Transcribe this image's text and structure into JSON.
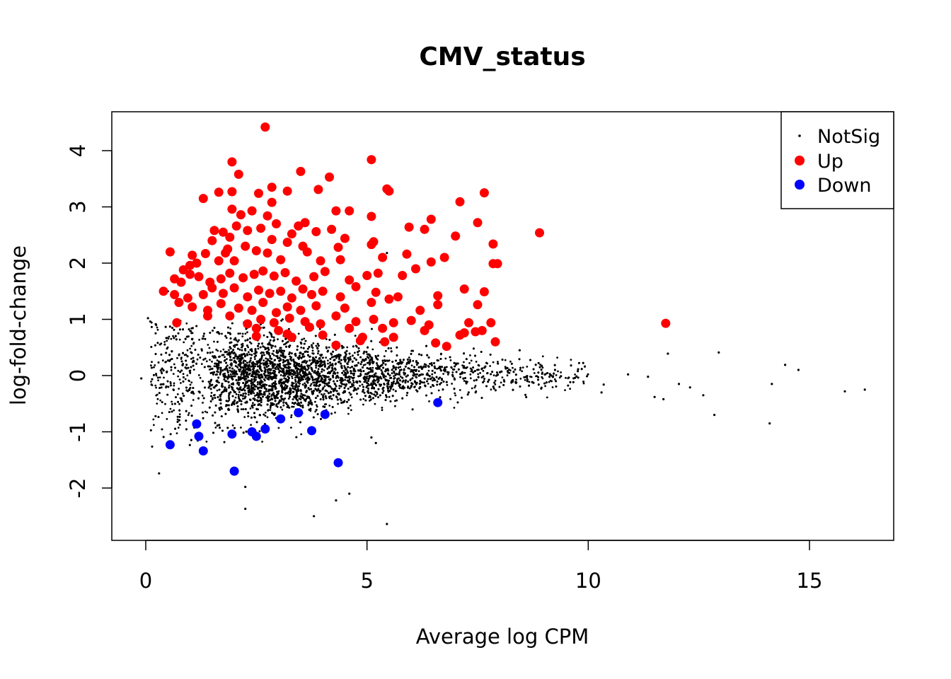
{
  "chart_data": {
    "type": "scatter",
    "title": "CMV_status",
    "xlabel": "Average log CPM",
    "ylabel": "log-fold-change",
    "xlim": [
      -0.8,
      17.0
    ],
    "ylim": [
      -2.9,
      4.7
    ],
    "xticks": [
      0,
      5,
      10,
      15
    ],
    "yticks": [
      -2,
      -1,
      0,
      1,
      2,
      3,
      4
    ],
    "grid": false,
    "legend": {
      "position": "top-right",
      "entries": [
        {
          "label": "NotSig",
          "color": "#000000",
          "marker": "small-dot"
        },
        {
          "label": "Up",
          "color": "#ff0000",
          "marker": "dot"
        },
        {
          "label": "Down",
          "color": "#0000ff",
          "marker": "dot"
        }
      ]
    },
    "series": [
      {
        "name": "Up",
        "color": "#ff0000",
        "points": [
          [
            2.7,
            4.42
          ],
          [
            5.1,
            3.84
          ],
          [
            1.95,
            3.8
          ],
          [
            3.5,
            3.63
          ],
          [
            2.1,
            3.58
          ],
          [
            4.15,
            3.53
          ],
          [
            2.85,
            3.35
          ],
          [
            5.45,
            3.32
          ],
          [
            5.5,
            3.28
          ],
          [
            1.95,
            3.27
          ],
          [
            1.65,
            3.26
          ],
          [
            2.55,
            3.24
          ],
          [
            3.2,
            3.28
          ],
          [
            3.9,
            3.31
          ],
          [
            7.65,
            3.25
          ],
          [
            1.3,
            3.15
          ],
          [
            2.85,
            3.08
          ],
          [
            7.1,
            3.09
          ],
          [
            2.4,
            2.93
          ],
          [
            4.3,
            2.93
          ],
          [
            4.6,
            2.93
          ],
          [
            1.95,
            2.96
          ],
          [
            2.15,
            2.86
          ],
          [
            5.1,
            2.83
          ],
          [
            2.75,
            2.84
          ],
          [
            6.45,
            2.78
          ],
          [
            2.95,
            2.7
          ],
          [
            3.6,
            2.72
          ],
          [
            3.45,
            2.66
          ],
          [
            7.5,
            2.72
          ],
          [
            2.3,
            2.58
          ],
          [
            2.6,
            2.62
          ],
          [
            3.85,
            2.56
          ],
          [
            5.95,
            2.64
          ],
          [
            6.3,
            2.6
          ],
          [
            2.05,
            2.66
          ],
          [
            1.55,
            2.58
          ],
          [
            1.75,
            2.55
          ],
          [
            3.3,
            2.52
          ],
          [
            4.2,
            2.6
          ],
          [
            7.0,
            2.48
          ],
          [
            8.9,
            2.54
          ],
          [
            1.5,
            2.4
          ],
          [
            1.9,
            2.46
          ],
          [
            2.85,
            2.42
          ],
          [
            3.2,
            2.37
          ],
          [
            4.5,
            2.44
          ],
          [
            5.15,
            2.38
          ],
          [
            7.85,
            2.34
          ],
          [
            1.85,
            2.25
          ],
          [
            2.25,
            2.3
          ],
          [
            3.55,
            2.3
          ],
          [
            4.35,
            2.28
          ],
          [
            5.1,
            2.33
          ],
          [
            0.55,
            2.2
          ],
          [
            0.85,
            1.88
          ],
          [
            1.0,
            1.96
          ],
          [
            1.05,
            2.14
          ],
          [
            1.15,
            2.0
          ],
          [
            1.35,
            2.17
          ],
          [
            1.65,
            2.04
          ],
          [
            1.8,
            2.18
          ],
          [
            2.0,
            2.04
          ],
          [
            2.5,
            2.22
          ],
          [
            2.75,
            2.18
          ],
          [
            3.05,
            2.06
          ],
          [
            3.65,
            2.2
          ],
          [
            3.95,
            2.04
          ],
          [
            4.4,
            2.06
          ],
          [
            5.35,
            2.1
          ],
          [
            5.9,
            2.16
          ],
          [
            6.45,
            2.02
          ],
          [
            6.75,
            2.1
          ],
          [
            7.85,
            1.99
          ],
          [
            7.95,
            1.99
          ],
          [
            0.65,
            1.72
          ],
          [
            0.8,
            1.66
          ],
          [
            1.0,
            1.8
          ],
          [
            1.2,
            1.76
          ],
          [
            1.45,
            1.66
          ],
          [
            1.7,
            1.72
          ],
          [
            1.9,
            1.82
          ],
          [
            2.2,
            1.74
          ],
          [
            2.45,
            1.8
          ],
          [
            2.65,
            1.86
          ],
          [
            2.9,
            1.77
          ],
          [
            3.15,
            1.83
          ],
          [
            3.4,
            1.68
          ],
          [
            3.8,
            1.76
          ],
          [
            4.05,
            1.85
          ],
          [
            4.6,
            1.7
          ],
          [
            5.0,
            1.78
          ],
          [
            5.25,
            1.82
          ],
          [
            5.8,
            1.78
          ],
          [
            6.1,
            1.9
          ],
          [
            0.4,
            1.5
          ],
          [
            0.65,
            1.44
          ],
          [
            0.95,
            1.38
          ],
          [
            1.3,
            1.44
          ],
          [
            1.5,
            1.56
          ],
          [
            1.75,
            1.46
          ],
          [
            2.0,
            1.56
          ],
          [
            2.3,
            1.4
          ],
          [
            2.55,
            1.52
          ],
          [
            2.8,
            1.46
          ],
          [
            3.05,
            1.5
          ],
          [
            3.3,
            1.38
          ],
          [
            3.55,
            1.54
          ],
          [
            3.75,
            1.44
          ],
          [
            4.0,
            1.5
          ],
          [
            4.4,
            1.4
          ],
          [
            4.75,
            1.58
          ],
          [
            5.2,
            1.48
          ],
          [
            5.7,
            1.4
          ],
          [
            6.6,
            1.42
          ],
          [
            7.2,
            1.54
          ],
          [
            7.65,
            1.49
          ],
          [
            0.75,
            1.3
          ],
          [
            1.05,
            1.22
          ],
          [
            1.4,
            1.16
          ],
          [
            1.7,
            1.28
          ],
          [
            2.1,
            1.2
          ],
          [
            2.4,
            1.16
          ],
          [
            2.65,
            1.3
          ],
          [
            2.95,
            1.12
          ],
          [
            3.2,
            1.22
          ],
          [
            3.5,
            1.16
          ],
          [
            3.85,
            1.24
          ],
          [
            4.5,
            1.2
          ],
          [
            5.1,
            1.3
          ],
          [
            5.5,
            1.36
          ],
          [
            6.2,
            1.16
          ],
          [
            6.6,
            1.26
          ],
          [
            7.5,
            1.26
          ],
          [
            0.7,
            0.94
          ],
          [
            1.4,
            1.06
          ],
          [
            1.9,
            1.06
          ],
          [
            2.3,
            0.92
          ],
          [
            2.6,
            1.0
          ],
          [
            2.9,
            0.94
          ],
          [
            3.25,
            1.02
          ],
          [
            3.6,
            0.96
          ],
          [
            3.95,
            0.92
          ],
          [
            4.3,
            1.06
          ],
          [
            4.75,
            0.96
          ],
          [
            5.15,
            1.0
          ],
          [
            5.6,
            0.94
          ],
          [
            6.0,
            0.98
          ],
          [
            6.4,
            0.9
          ],
          [
            7.3,
            0.94
          ],
          [
            7.8,
            0.94
          ],
          [
            2.5,
            0.84
          ],
          [
            3.0,
            0.8
          ],
          [
            3.7,
            0.86
          ],
          [
            4.6,
            0.84
          ],
          [
            5.35,
            0.84
          ],
          [
            6.3,
            0.8
          ],
          [
            7.45,
            0.78
          ],
          [
            3.2,
            0.74
          ],
          [
            4.0,
            0.72
          ],
          [
            4.9,
            0.68
          ],
          [
            7.1,
            0.72
          ],
          [
            7.2,
            0.76
          ],
          [
            7.6,
            0.8
          ],
          [
            2.5,
            0.7
          ],
          [
            3.3,
            0.68
          ],
          [
            4.85,
            0.62
          ],
          [
            5.6,
            0.68
          ],
          [
            6.55,
            0.58
          ],
          [
            6.8,
            0.52
          ],
          [
            4.3,
            0.54
          ],
          [
            5.4,
            0.6
          ],
          [
            7.9,
            0.6
          ],
          [
            11.75,
            0.93
          ]
        ]
      },
      {
        "name": "Down",
        "color": "#0000ff",
        "points": [
          [
            0.55,
            -1.23
          ],
          [
            1.15,
            -0.86
          ],
          [
            1.2,
            -1.08
          ],
          [
            1.3,
            -1.34
          ],
          [
            1.95,
            -1.04
          ],
          [
            2.0,
            -1.7
          ],
          [
            2.4,
            -1.0
          ],
          [
            2.5,
            -1.08
          ],
          [
            2.7,
            -0.95
          ],
          [
            3.05,
            -0.77
          ],
          [
            3.45,
            -0.66
          ],
          [
            3.75,
            -0.98
          ],
          [
            4.05,
            -0.69
          ],
          [
            4.35,
            -1.55
          ],
          [
            6.6,
            -0.48
          ]
        ]
      }
    ],
    "notsig_summary": {
      "description": "dense cloud of non-significant genes centred near 0",
      "extra_points": [
        [
          -0.1,
          -0.05
        ],
        [
          0.05,
          1.02
        ],
        [
          0.3,
          -1.74
        ],
        [
          0.5,
          1.5
        ],
        [
          2.25,
          -1.98
        ],
        [
          2.25,
          -2.37
        ],
        [
          3.8,
          -2.5
        ],
        [
          4.3,
          -2.22
        ],
        [
          4.6,
          -2.1
        ],
        [
          5.45,
          -2.64
        ],
        [
          5.2,
          -1.2
        ],
        [
          5.1,
          -1.1
        ],
        [
          5.45,
          2.18
        ],
        [
          8.45,
          0.45
        ],
        [
          9.25,
          0.1
        ],
        [
          9.7,
          -0.04
        ],
        [
          10.35,
          -0.16
        ],
        [
          10.9,
          0.02
        ],
        [
          11.35,
          -0.02
        ],
        [
          11.7,
          -0.42
        ],
        [
          11.8,
          0.39
        ],
        [
          12.05,
          -0.15
        ],
        [
          12.3,
          -0.21
        ],
        [
          12.6,
          -0.35
        ],
        [
          12.85,
          -0.7
        ],
        [
          12.95,
          0.41
        ],
        [
          14.1,
          -0.85
        ],
        [
          14.15,
          -0.15
        ],
        [
          14.45,
          0.19
        ],
        [
          14.75,
          0.1
        ],
        [
          15.8,
          -0.28
        ],
        [
          16.25,
          -0.25
        ],
        [
          10.3,
          -0.3
        ],
        [
          11.5,
          -0.38
        ]
      ]
    }
  }
}
